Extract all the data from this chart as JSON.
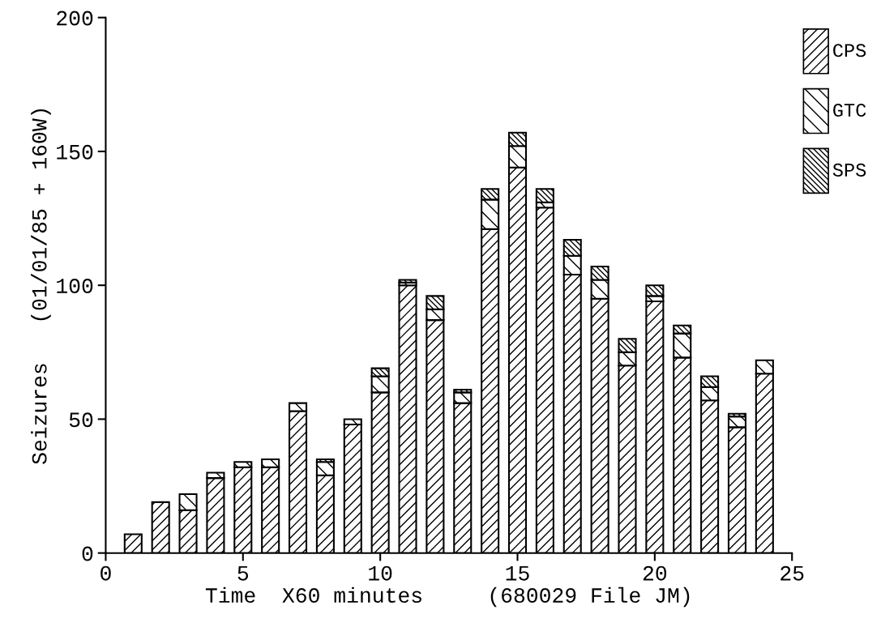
{
  "chart_data": {
    "type": "bar",
    "stacked": true,
    "xlabel": "Time  X60 minutes     (680029 File JM)",
    "ylabel": "Seizures   (01/01/85 + 160W)",
    "x": [
      1,
      2,
      3,
      4,
      5,
      6,
      7,
      8,
      9,
      10,
      11,
      12,
      13,
      14,
      15,
      16,
      17,
      18,
      19,
      20,
      21,
      22,
      23,
      24
    ],
    "series": [
      {
        "name": "CPS",
        "color": "#000000",
        "values": [
          7,
          19,
          16,
          28,
          32,
          32,
          53,
          29,
          48,
          60,
          100,
          87,
          56,
          121,
          144,
          129,
          104,
          95,
          70,
          94,
          73,
          57,
          47,
          67
        ]
      },
      {
        "name": "GTC",
        "color": "#000000",
        "values": [
          null,
          null,
          6,
          2,
          2,
          3,
          3,
          5,
          2,
          6,
          1,
          4,
          4,
          11,
          8,
          2,
          7,
          7,
          5,
          2,
          9,
          5,
          4,
          5
        ]
      },
      {
        "name": "SPS",
        "color": "#000000",
        "values": [
          null,
          null,
          null,
          null,
          null,
          null,
          null,
          1,
          null,
          3,
          1,
          5,
          1,
          4,
          5,
          5,
          6,
          5,
          5,
          4,
          3,
          4,
          1,
          null
        ]
      }
    ],
    "xlim": [
      0,
      25
    ],
    "xticks": [
      0,
      5,
      10,
      15,
      20,
      25
    ],
    "ylim": [
      0,
      200
    ],
    "yticks": [
      0,
      50,
      100,
      150,
      200
    ],
    "grid": false,
    "legend": "top right"
  }
}
